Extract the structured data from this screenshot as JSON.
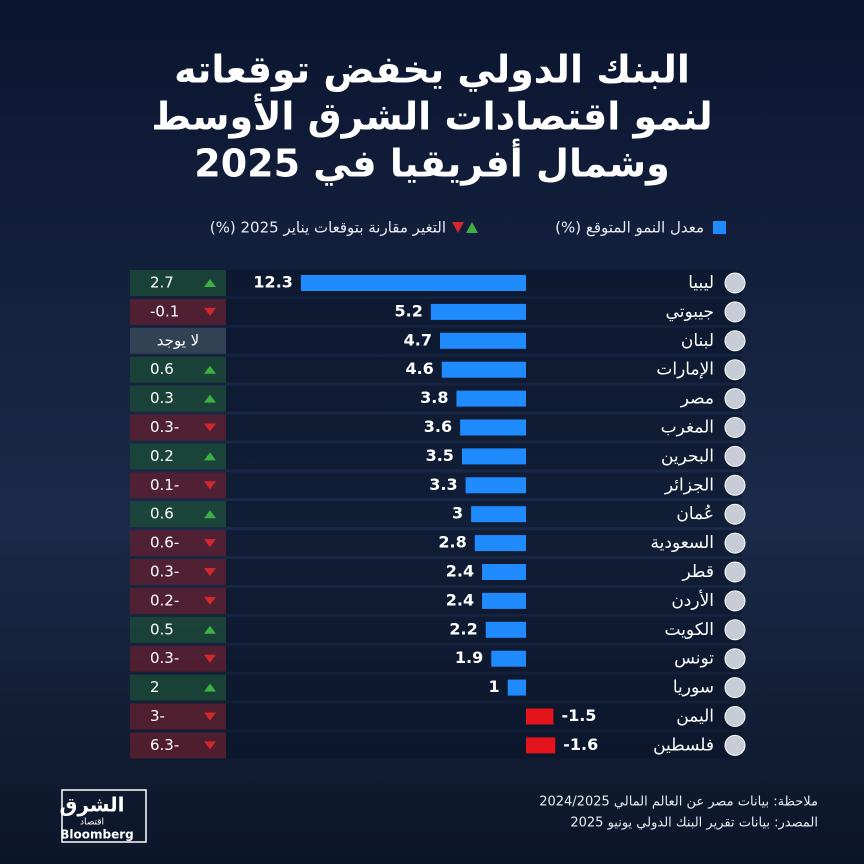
{
  "chart_data": {
    "type": "bar",
    "title": [
      "البنك الدولي يخفض توقعاته",
      "لنمو اقتصادات الشرق الأوسط",
      "وشمال أفريقيا في 2025"
    ],
    "categories": [
      "ليبيا",
      "جيبوتي",
      "لبنان",
      "الإمارات",
      "مصر",
      "المغرب",
      "البحرين",
      "الجزائر",
      "عُمان",
      "السعودية",
      "قطر",
      "الأردن",
      "الكويت",
      "تونس",
      "سوريا",
      "اليمن",
      "فلسطين"
    ],
    "series": [
      {
        "name": "معدل النمو المتوقع (%)",
        "color": "#1f8bff",
        "negative_color": "#e3141b",
        "values": [
          12.3,
          5.2,
          4.7,
          4.6,
          3.8,
          3.6,
          3.5,
          3.3,
          3,
          2.8,
          2.4,
          2.4,
          2.2,
          1.9,
          1,
          -1.5,
          -1.6
        ]
      },
      {
        "name": "التغير مقارنة بتوقعات يناير 2025 (%)",
        "up_color": "#3cb043",
        "down_color": "#d0282d",
        "values": [
          2.7,
          -0.1,
          null,
          0.6,
          0.3,
          -0.3,
          0.2,
          -0.1,
          0.6,
          -0.6,
          -0.3,
          -0.2,
          0.5,
          -0.3,
          2,
          -3,
          -6.3
        ],
        "value_labels": [
          "2.7",
          "-0.1",
          "لا يوجد",
          "0.6",
          "0.3",
          "0.3-",
          "0.2",
          "0.1-",
          "0.6",
          "0.6-",
          "0.3-",
          "0.2-",
          "0.5",
          "0.3-",
          "2",
          "3-",
          "6.3-"
        ]
      }
    ],
    "notes": [
      "ملاحظة: بيانات مصر عن العالم المالي 2024/2025",
      "المصدر: بيانات تقرير البنك الدولي يونيو 2025"
    ],
    "logo": {
      "brand": "الشرق",
      "sub": "اقتصاد",
      "partner": "Bloomberg"
    }
  }
}
